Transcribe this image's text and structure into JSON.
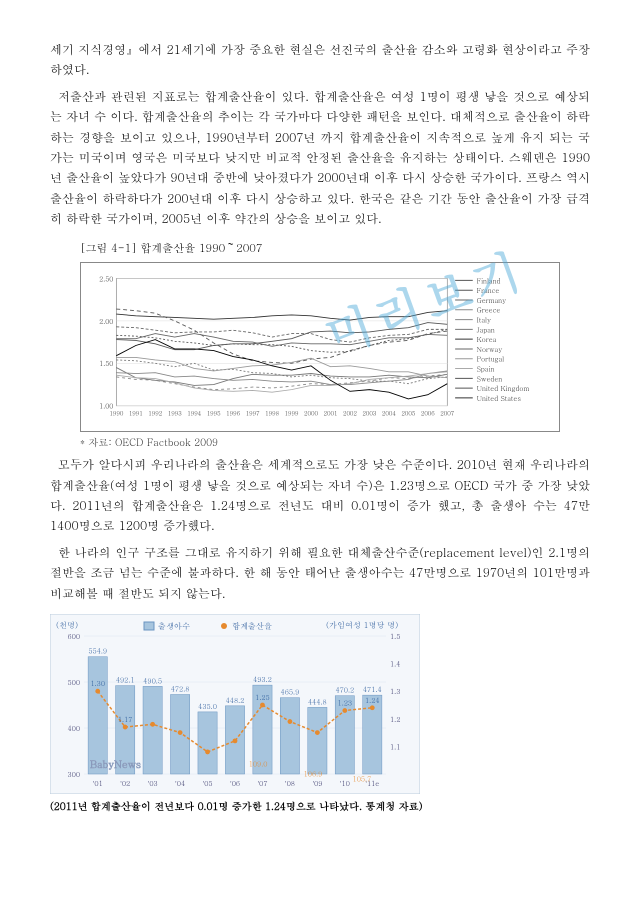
{
  "watermark": "미리보기",
  "p1": "세기 지식경영』에서 21세기에 가장 중요한 현실은 선진국의 출산율 감소와 고령화 현상이라고 주장하였다.",
  "p2": "저출산과 관련된 지표로는 합계출산율이 있다. 합계출산율은 여성 1명이 평생 낳을 것으로 예상되는 자녀 수 이다. 합계출산율의 추이는 각 국가마다 다양한 패턴을 보인다. 대체적으로 출산율이 하락하는 경향을 보이고 있으나, 1990년부터 2007년 까지 합계출산율이 지속적으로 높게 유지 되는 국가는 미국이며 영국은 미국보다 낮지만 비교적 안정된 출산율을 유지하는 상태이다. 스웨덴은 1990년 출산율이 높았다가 90년대 중반에 낮아졌다가 2000년대 이후 다시 상승한 국가이다. 프랑스 역시 출산율이 하락하다가 200년대 이후 다시 상승하고 있다. 한국은 같은 기간 동안 출산율이 가장 급격히 하락한 국가이며, 2005년 이후 약간의 상승을 보이고 있다.",
  "chart1": {
    "title": "[그림 4-1] 합계출산율 1990～2007",
    "ymin": 1.0,
    "ymax": 2.5,
    "ystep": 0.5,
    "yticks": [
      "1.00",
      "1.50",
      "2.00",
      "2.50"
    ],
    "xmin": 1990,
    "xmax": 2007,
    "xticks": [
      "1990",
      "1991",
      "1992",
      "1993",
      "1994",
      "1995",
      "1996",
      "1997",
      "1998",
      "1999",
      "2000",
      "2001",
      "2002",
      "2003",
      "2004",
      "2005",
      "2006",
      "2007"
    ],
    "legend": [
      "Finland",
      "France",
      "Germany",
      "Greece",
      "Italy",
      "Japan",
      "Korea",
      "Norway",
      "Portugal",
      "Spain",
      "Sweden",
      "United Kingdom",
      "United States"
    ],
    "legend_colors": [
      "#555",
      "#555",
      "#666",
      "#888",
      "#888",
      "#777",
      "#333",
      "#666",
      "#999",
      "#aaa",
      "#555",
      "#555",
      "#333"
    ],
    "series": [
      {
        "name": "United States",
        "color": "#333",
        "dash": "",
        "y": [
          2.08,
          2.06,
          2.05,
          2.04,
          2.03,
          2.02,
          2.03,
          2.04,
          2.06,
          2.07,
          2.06,
          2.03,
          2.01,
          2.04,
          2.05,
          2.05,
          2.1,
          2.12
        ]
      },
      {
        "name": "France",
        "color": "#555",
        "dash": "",
        "y": [
          1.78,
          1.77,
          1.73,
          1.66,
          1.66,
          1.71,
          1.73,
          1.73,
          1.76,
          1.79,
          1.87,
          1.88,
          1.86,
          1.87,
          1.9,
          1.92,
          1.98,
          1.96
        ]
      },
      {
        "name": "Sweden",
        "color": "#555",
        "dash": "4,3",
        "y": [
          2.14,
          2.12,
          2.09,
          2.0,
          1.89,
          1.74,
          1.61,
          1.53,
          1.51,
          1.5,
          1.55,
          1.57,
          1.65,
          1.71,
          1.75,
          1.77,
          1.85,
          1.88
        ]
      },
      {
        "name": "United Kingdom",
        "color": "#555",
        "dash": "2,2",
        "y": [
          1.83,
          1.82,
          1.8,
          1.76,
          1.74,
          1.71,
          1.73,
          1.72,
          1.72,
          1.7,
          1.65,
          1.63,
          1.64,
          1.71,
          1.77,
          1.79,
          1.84,
          1.9
        ]
      },
      {
        "name": "Finland",
        "color": "#666",
        "dash": "",
        "y": [
          1.79,
          1.79,
          1.85,
          1.81,
          1.85,
          1.81,
          1.76,
          1.75,
          1.7,
          1.74,
          1.73,
          1.73,
          1.72,
          1.76,
          1.8,
          1.8,
          1.84,
          1.83
        ]
      },
      {
        "name": "Norway",
        "color": "#666",
        "dash": "3,2",
        "y": [
          1.93,
          1.92,
          1.89,
          1.86,
          1.87,
          1.87,
          1.89,
          1.86,
          1.81,
          1.85,
          1.85,
          1.78,
          1.75,
          1.8,
          1.83,
          1.84,
          1.9,
          1.9
        ]
      },
      {
        "name": "Germany",
        "color": "#777",
        "dash": "",
        "y": [
          1.45,
          1.33,
          1.3,
          1.28,
          1.24,
          1.25,
          1.32,
          1.37,
          1.36,
          1.36,
          1.38,
          1.35,
          1.34,
          1.34,
          1.36,
          1.34,
          1.33,
          1.37
        ]
      },
      {
        "name": "Japan",
        "color": "#777",
        "dash": "2,2",
        "y": [
          1.54,
          1.53,
          1.5,
          1.46,
          1.5,
          1.42,
          1.43,
          1.39,
          1.38,
          1.34,
          1.36,
          1.33,
          1.32,
          1.29,
          1.29,
          1.26,
          1.32,
          1.34
        ]
      },
      {
        "name": "Greece",
        "color": "#888",
        "dash": "",
        "y": [
          1.39,
          1.38,
          1.39,
          1.34,
          1.35,
          1.32,
          1.3,
          1.31,
          1.29,
          1.28,
          1.29,
          1.25,
          1.25,
          1.27,
          1.29,
          1.31,
          1.38,
          1.41
        ]
      },
      {
        "name": "Portugal",
        "color": "#999",
        "dash": "",
        "y": [
          1.57,
          1.57,
          1.54,
          1.52,
          1.44,
          1.41,
          1.44,
          1.47,
          1.48,
          1.51,
          1.56,
          1.46,
          1.47,
          1.44,
          1.4,
          1.4,
          1.35,
          1.33
        ]
      },
      {
        "name": "Italy",
        "color": "#888",
        "dash": "3,3",
        "y": [
          1.34,
          1.31,
          1.3,
          1.26,
          1.22,
          1.19,
          1.2,
          1.22,
          1.21,
          1.23,
          1.26,
          1.25,
          1.27,
          1.29,
          1.33,
          1.32,
          1.35,
          1.37
        ]
      },
      {
        "name": "Spain",
        "color": "#aaa",
        "dash": "",
        "y": [
          1.36,
          1.33,
          1.32,
          1.27,
          1.21,
          1.18,
          1.17,
          1.18,
          1.16,
          1.19,
          1.24,
          1.24,
          1.26,
          1.31,
          1.33,
          1.35,
          1.38,
          1.4
        ]
      },
      {
        "name": "Korea",
        "color": "#000",
        "dash": "",
        "y": [
          1.59,
          1.71,
          1.78,
          1.67,
          1.67,
          1.65,
          1.58,
          1.54,
          1.47,
          1.42,
          1.47,
          1.3,
          1.17,
          1.19,
          1.16,
          1.08,
          1.13,
          1.26
        ]
      }
    ],
    "source": "* 자료: OECD Factbook 2009",
    "grid_color": "#ddd",
    "axis_color": "#888"
  },
  "p3": "모두가 알다시피 우리나라의 출산율은 세계적으로도 가장 낮은 수준이다. 2010년 현재 우리나라의 합계출산율(여성 1명이 평생 낳을 것으로 예상되는 자녀 수)은 1.23명으로 OECD 국가 중 가장 낮았다. 2011년의 합계출산율은 1.24명으로 전년도 대비 0.01명이 증가 했고, 총 출생아 수는 47만 1400명으로 1200명 증가했다.",
  "p4": "한 나라의 인구 구조를 그대로 유지하기 위해 필요한 대체출산수준(replacement level)인 2.1명의 절반을 조금 넘는 수준에 불과하다. 한 해 동안 태어난 출생아수는 47만명으로 1970년의 101만명과 비교해볼 때 절반도 되지 않는다.",
  "chart2": {
    "y1_label": "(천명)",
    "y2_label": "(가임여성 1명당 명)",
    "y1_ticks": [
      "300",
      "400",
      "500",
      "600"
    ],
    "y2_ticks": [
      "1.1",
      "1.2",
      "1.3",
      "1.4",
      "1.5"
    ],
    "legend1": "출생아수",
    "legend2": "합계출산율",
    "xticks": [
      "'01",
      "'02",
      "'03",
      "'04",
      "'05",
      "'06",
      "'07",
      "'08",
      "'09",
      "'10",
      "'11e"
    ],
    "bars": [
      554.9,
      492.1,
      490.5,
      472.8,
      435.0,
      448.2,
      493.2,
      465.9,
      444.8,
      470.2,
      471.4
    ],
    "bar_color": "#a7c5de",
    "line": [
      1.3,
      1.17,
      1.18,
      1.15,
      1.08,
      1.12,
      1.25,
      1.19,
      1.15,
      1.23,
      1.24
    ],
    "line_labels": [
      "1.30",
      "1.17",
      "1.18",
      "1.15",
      "1.08",
      "1.12",
      "1.25",
      "1.19",
      "1.15",
      "1.23",
      "1.24"
    ],
    "mid_label1": "109.0",
    "mid_label2": "106.9",
    "mid_label3": "105.7",
    "line_color": "#e68a2e",
    "bg": "#f4f7fb",
    "logo": "BabyNews"
  },
  "caption": "(2011년 합계출산율이 전년보다 0.01명 증가한 1.24명으로 나타났다. 통계청 자료)"
}
